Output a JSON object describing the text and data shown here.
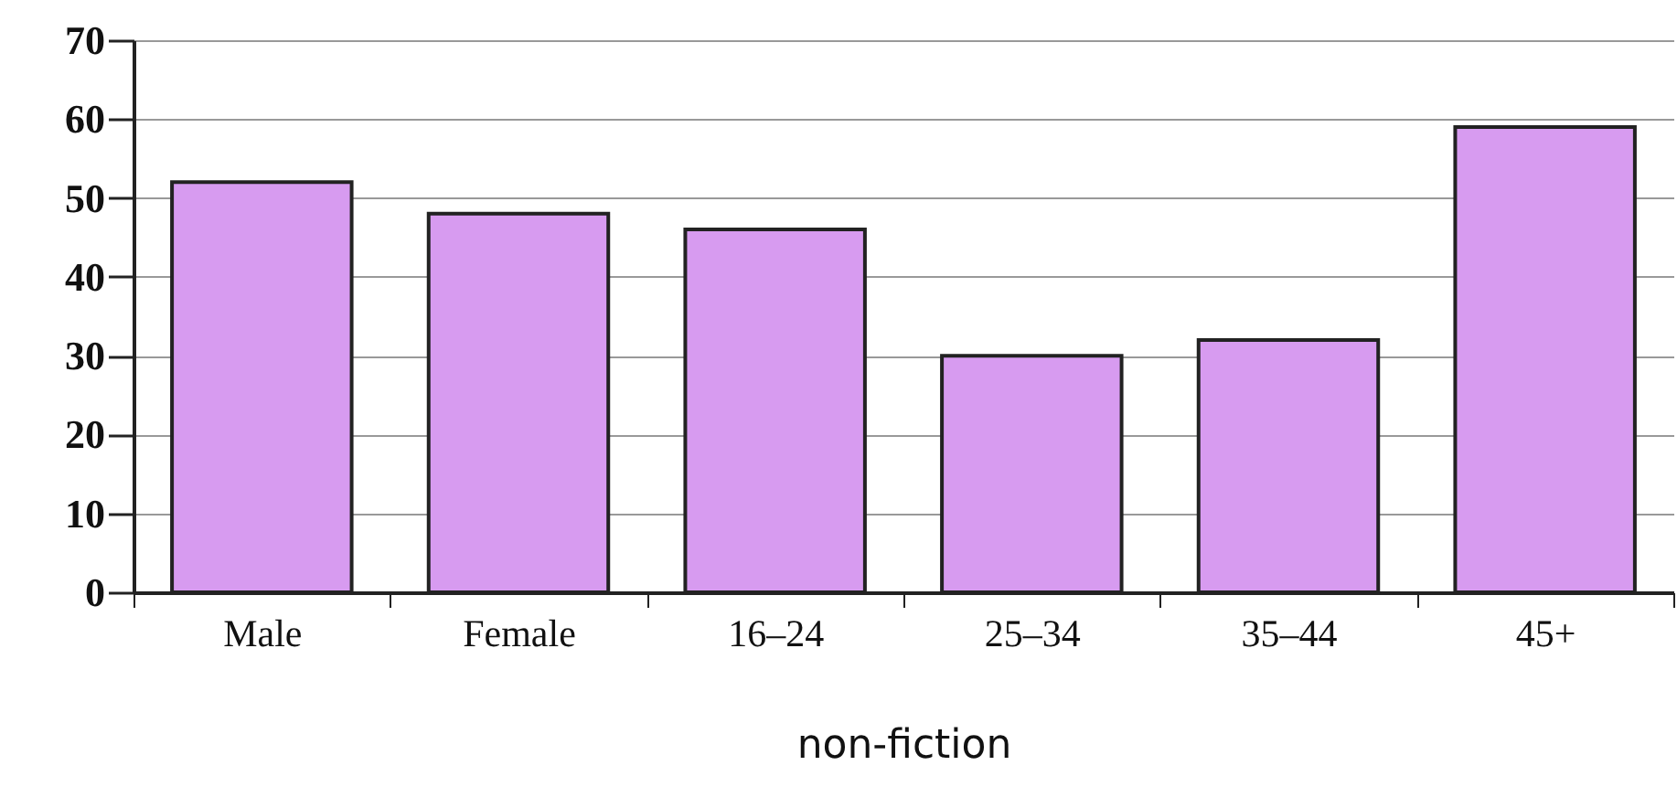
{
  "chart_data": {
    "type": "bar",
    "xlabel": "non-fiction",
    "categories": [
      "Male",
      "Female",
      "16–24",
      "25–34",
      "35–44",
      "45+"
    ],
    "values": [
      52,
      48,
      46,
      30,
      32,
      59
    ],
    "color": "#d79bf0",
    "ylim": [
      0,
      70
    ],
    "yticks": [
      0,
      10,
      20,
      30,
      40,
      50,
      60,
      70
    ],
    "grid": "y"
  }
}
